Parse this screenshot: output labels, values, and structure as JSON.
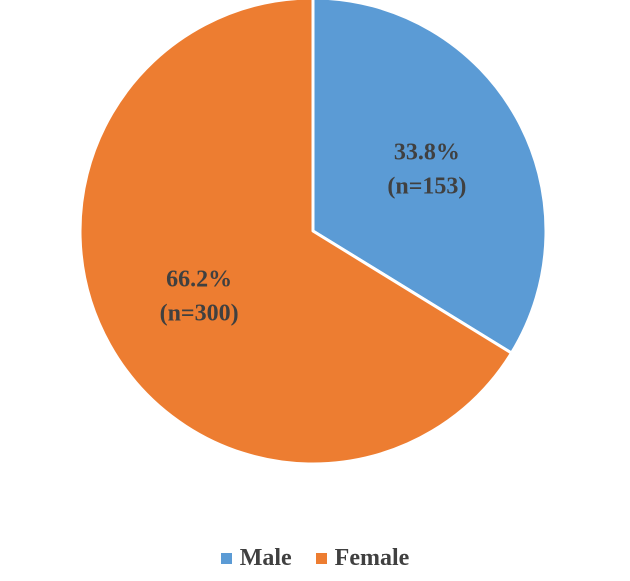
{
  "chart_data": {
    "type": "pie",
    "title": "",
    "slices": [
      {
        "name": "Male",
        "value": 153,
        "percent": 33.8,
        "pct_label": "33.8%",
        "n_label": "(n=153)",
        "color": "#5B9BD5"
      },
      {
        "name": "Female",
        "value": 300,
        "percent": 66.2,
        "pct_label": "66.2%",
        "n_label": "(n=300)",
        "color": "#ED7D31"
      }
    ],
    "legend_position": "bottom",
    "start_angle": "12 o'clock, clockwise"
  }
}
